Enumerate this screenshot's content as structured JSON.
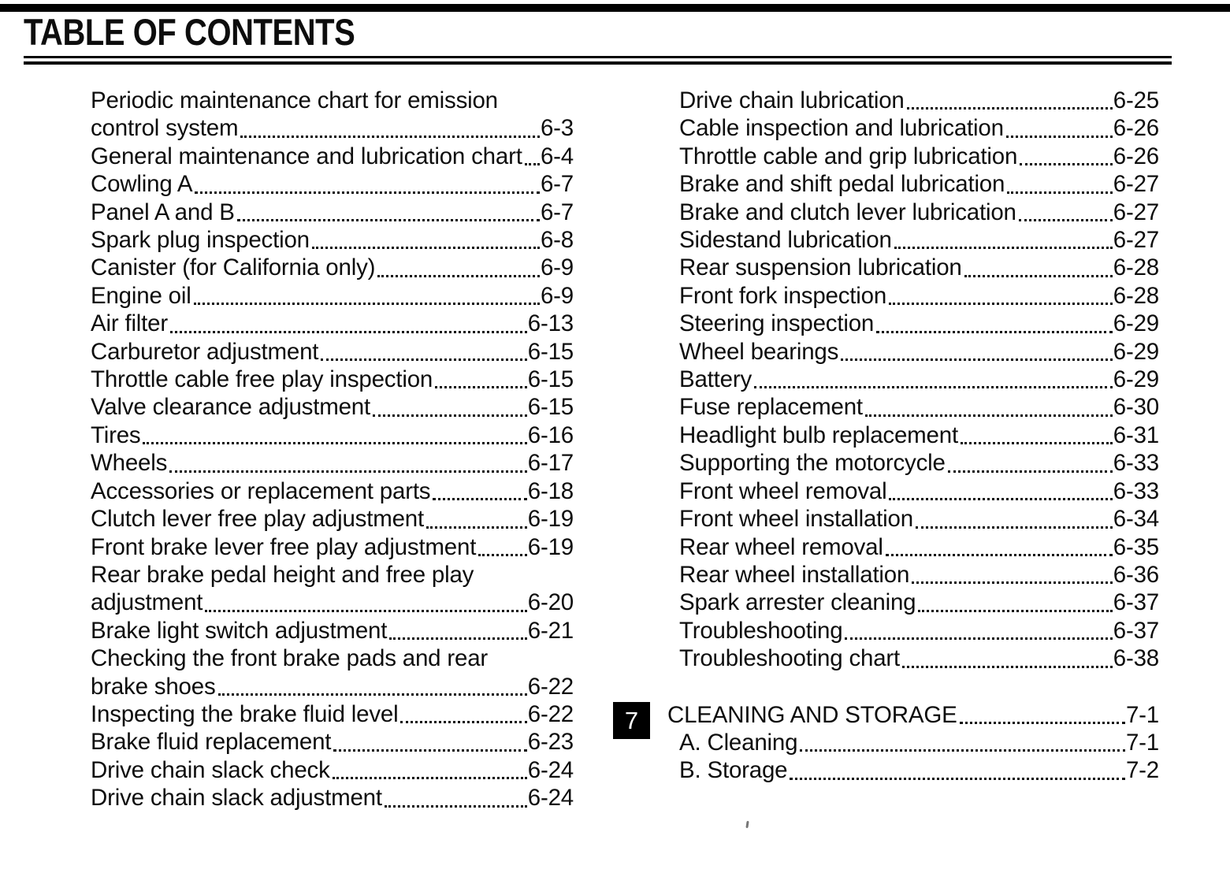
{
  "page": {
    "title": "TABLE OF CONTENTS"
  },
  "colors": {
    "ink": "#0d0d0d",
    "paper": "#ffffff",
    "tab_bg": "#000000",
    "tab_fg": "#ffffff"
  },
  "toc": {
    "left_column": [
      {
        "lines": [
          "Periodic maintenance chart for emission",
          "control system"
        ],
        "page": "6-3"
      },
      {
        "lines": [
          "General maintenance and lubrication chart"
        ],
        "page": "6-4"
      },
      {
        "lines": [
          "Cowling A"
        ],
        "page": "6-7"
      },
      {
        "lines": [
          "Panel A and B"
        ],
        "page": "6-7"
      },
      {
        "lines": [
          "Spark plug inspection"
        ],
        "page": "6-8"
      },
      {
        "lines": [
          "Canister (for California only)"
        ],
        "page": "6-9"
      },
      {
        "lines": [
          "Engine oil"
        ],
        "page": "6-9"
      },
      {
        "lines": [
          "Air filter"
        ],
        "page": "6-13"
      },
      {
        "lines": [
          "Carburetor adjustment"
        ],
        "page": "6-15"
      },
      {
        "lines": [
          "Throttle cable free play inspection"
        ],
        "page": "6-15"
      },
      {
        "lines": [
          "Valve clearance adjustment"
        ],
        "page": "6-15"
      },
      {
        "lines": [
          "Tires"
        ],
        "page": "6-16"
      },
      {
        "lines": [
          "Wheels"
        ],
        "page": "6-17"
      },
      {
        "lines": [
          "Accessories or replacement parts"
        ],
        "page": "6-18"
      },
      {
        "lines": [
          "Clutch lever free play adjustment"
        ],
        "page": "6-19"
      },
      {
        "lines": [
          "Front brake lever free play adjustment"
        ],
        "page": "6-19"
      },
      {
        "lines": [
          "Rear brake pedal height and free play",
          "adjustment"
        ],
        "page": "6-20"
      },
      {
        "lines": [
          "Brake light switch adjustment"
        ],
        "page": "6-21"
      },
      {
        "lines": [
          "Checking the front brake pads and rear",
          "brake shoes"
        ],
        "page": "6-22"
      },
      {
        "lines": [
          "Inspecting the brake fluid level"
        ],
        "page": "6-22"
      },
      {
        "lines": [
          "Brake fluid replacement"
        ],
        "page": "6-23"
      },
      {
        "lines": [
          "Drive chain slack check"
        ],
        "page": "6-24"
      },
      {
        "lines": [
          "Drive chain slack adjustment"
        ],
        "page": "6-24"
      }
    ],
    "right_column": [
      {
        "lines": [
          "Drive chain lubrication"
        ],
        "page": "6-25"
      },
      {
        "lines": [
          "Cable inspection and lubrication"
        ],
        "page": "6-26"
      },
      {
        "lines": [
          "Throttle cable and grip lubrication"
        ],
        "page": "6-26"
      },
      {
        "lines": [
          "Brake and shift pedal lubrication"
        ],
        "page": "6-27"
      },
      {
        "lines": [
          "Brake and clutch lever lubrication"
        ],
        "page": "6-27"
      },
      {
        "lines": [
          "Sidestand lubrication"
        ],
        "page": "6-27"
      },
      {
        "lines": [
          "Rear suspension lubrication"
        ],
        "page": "6-28"
      },
      {
        "lines": [
          "Front fork inspection"
        ],
        "page": "6-28"
      },
      {
        "lines": [
          "Steering inspection"
        ],
        "page": "6-29"
      },
      {
        "lines": [
          "Wheel bearings"
        ],
        "page": "6-29"
      },
      {
        "lines": [
          "Battery"
        ],
        "page": "6-29"
      },
      {
        "lines": [
          "Fuse replacement"
        ],
        "page": "6-30"
      },
      {
        "lines": [
          "Headlight bulb replacement"
        ],
        "page": "6-31"
      },
      {
        "lines": [
          "Supporting the motorcycle"
        ],
        "page": "6-33"
      },
      {
        "lines": [
          "Front wheel removal"
        ],
        "page": "6-33"
      },
      {
        "lines": [
          "Front wheel installation"
        ],
        "page": "6-34"
      },
      {
        "lines": [
          "Rear wheel removal"
        ],
        "page": "6-35"
      },
      {
        "lines": [
          "Rear wheel installation"
        ],
        "page": "6-36"
      },
      {
        "lines": [
          "Spark arrester cleaning"
        ],
        "page": "6-37"
      },
      {
        "lines": [
          "Troubleshooting"
        ],
        "page": "6-37"
      },
      {
        "lines": [
          "Troubleshooting chart"
        ],
        "page": "6-38"
      }
    ],
    "section": {
      "tab_number": "7",
      "title": "CLEANING AND STORAGE",
      "page": "7-1",
      "items": [
        {
          "lines": [
            "A. Cleaning"
          ],
          "page": "7-1"
        },
        {
          "lines": [
            "B. Storage"
          ],
          "page": "7-2"
        }
      ]
    }
  }
}
